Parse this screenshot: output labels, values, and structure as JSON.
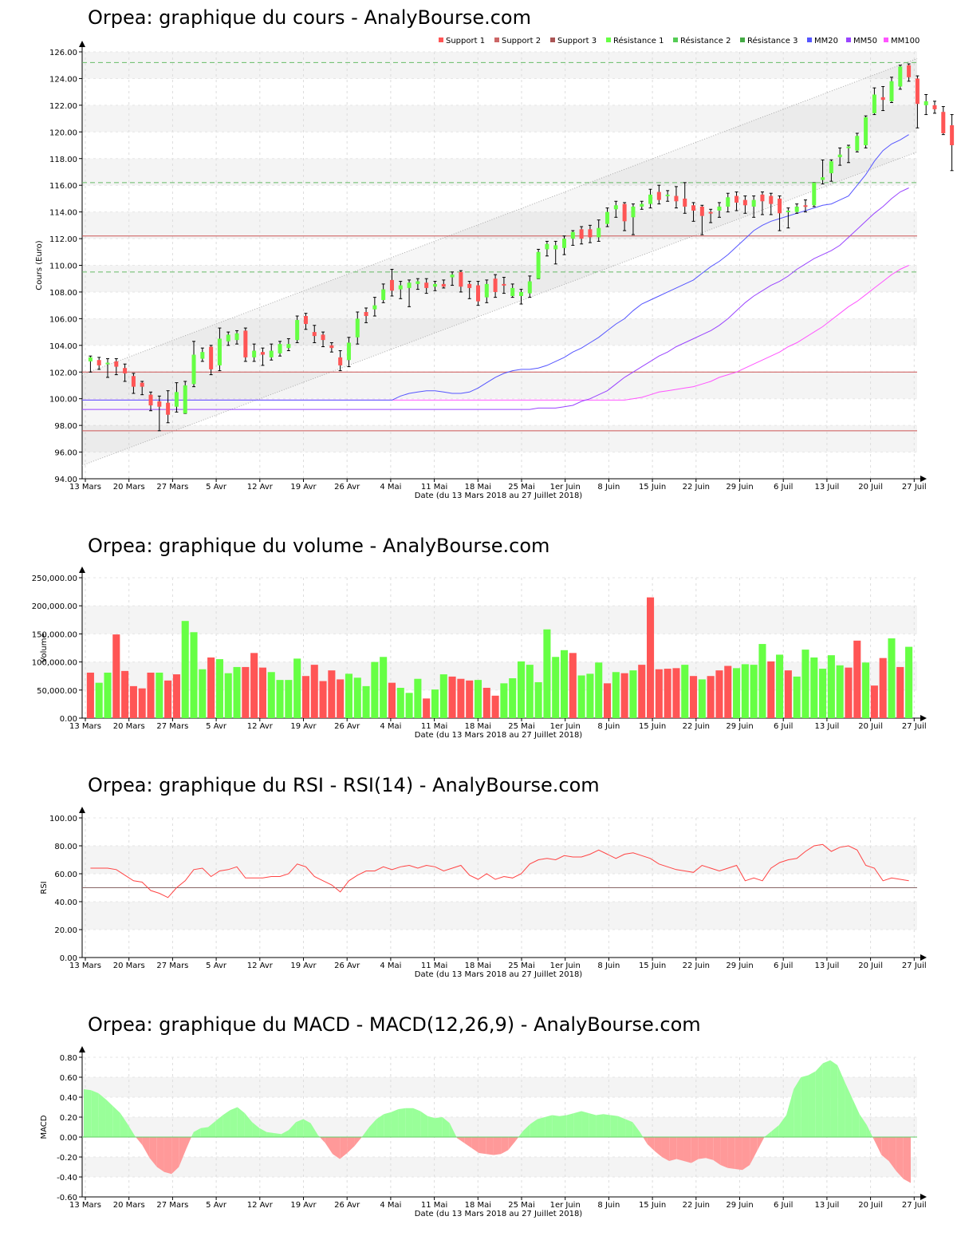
{
  "x_axis": {
    "ticks": [
      "13 Mars",
      "20 Mars",
      "27 Mars",
      "5 Avr",
      "12 Avr",
      "19 Avr",
      "26 Avr",
      "4 Mai",
      "11 Mai",
      "18 Mai",
      "25 Mai",
      "1er Juin",
      "8 Juin",
      "15 Juin",
      "22 Juin",
      "29 Juin",
      "6 Juil",
      "13 Juil",
      "20 Juil",
      "27 Juil"
    ],
    "label": "Date (du 13 Mars 2018 au 27 Juillet 2018)"
  },
  "colors": {
    "up": "#66ff44",
    "down": "#ff5555",
    "support": "#cc5555",
    "resistance": "#66bb66",
    "mm20": "#5555ff",
    "mm50": "#9944ff",
    "mm100": "#ff55ff",
    "rsi": "#ff4444",
    "macd_pos": "#99ff99",
    "macd_neg": "#ff9999"
  },
  "chart_data": [
    {
      "id": "price",
      "type": "candlestick",
      "title": "Orpea: graphique du cours - AnalyBourse.com",
      "ylabel": "Cours (Euro)",
      "ylim": [
        94,
        126
      ],
      "yticks": [
        "94.00",
        "96.00",
        "98.00",
        "100.00",
        "102.00",
        "104.00",
        "106.00",
        "108.00",
        "110.00",
        "112.00",
        "114.00",
        "116.00",
        "118.00",
        "120.00",
        "122.00",
        "124.00",
        "126.00"
      ],
      "legend": [
        "Support 1",
        "Support 2",
        "Support 3",
        "Résistance 1",
        "Résistance 2",
        "Résistance 3",
        "MM20",
        "MM50",
        "MM100"
      ],
      "support_levels": [
        102.0,
        97.6,
        112.2
      ],
      "resistance_levels": [
        109.5,
        116.2,
        125.2
      ],
      "channel": {
        "upper": [
          101.8,
          125.5
        ],
        "lower": [
          95.0,
          118.5
        ]
      },
      "candles": [
        [
          102.8,
          103.1,
          102.0,
          103.2
        ],
        [
          102.9,
          102.5,
          102.2,
          103.1
        ],
        [
          102.6,
          102.7,
          101.6,
          103.0
        ],
        [
          102.8,
          102.4,
          101.8,
          103.0
        ],
        [
          102.3,
          101.9,
          101.3,
          102.6
        ],
        [
          101.7,
          100.9,
          100.4,
          101.9
        ],
        [
          101.2,
          100.9,
          100.3,
          101.3
        ],
        [
          100.3,
          99.5,
          99.1,
          100.5
        ],
        [
          99.8,
          99.4,
          97.6,
          100.2
        ],
        [
          99.7,
          98.8,
          98.2,
          100.6
        ],
        [
          99.4,
          100.5,
          99.0,
          101.2
        ],
        [
          98.9,
          101.0,
          98.9,
          101.3
        ],
        [
          101.1,
          103.3,
          100.9,
          104.3
        ],
        [
          103.0,
          103.5,
          102.8,
          103.8
        ],
        [
          103.9,
          102.2,
          101.8,
          104.0
        ],
        [
          102.5,
          104.5,
          102.1,
          105.3
        ],
        [
          104.3,
          104.8,
          104.0,
          105.0
        ],
        [
          104.4,
          104.9,
          104.1,
          105.1
        ],
        [
          105.1,
          103.1,
          102.8,
          105.3
        ],
        [
          103.1,
          103.6,
          102.8,
          104.1
        ],
        [
          103.5,
          103.3,
          102.5,
          103.8
        ],
        [
          103.1,
          103.6,
          102.9,
          104.1
        ],
        [
          103.4,
          104.1,
          103.2,
          104.3
        ],
        [
          103.8,
          104.1,
          103.6,
          104.5
        ],
        [
          104.4,
          105.9,
          104.2,
          106.2
        ],
        [
          106.2,
          105.6,
          105.2,
          106.4
        ],
        [
          105.0,
          104.7,
          104.2,
          105.5
        ],
        [
          104.8,
          104.4,
          103.9,
          105.0
        ],
        [
          104.0,
          103.8,
          103.5,
          104.2
        ],
        [
          103.1,
          102.5,
          102.1,
          103.6
        ],
        [
          102.9,
          104.2,
          102.4,
          104.6
        ],
        [
          104.6,
          106.0,
          104.1,
          106.5
        ],
        [
          106.5,
          106.2,
          105.7,
          106.8
        ],
        [
          106.7,
          107.0,
          106.2,
          107.6
        ],
        [
          107.4,
          108.2,
          107.2,
          108.6
        ],
        [
          108.9,
          108.1,
          107.7,
          109.7
        ],
        [
          108.2,
          108.5,
          107.5,
          108.8
        ],
        [
          108.3,
          108.7,
          106.9,
          108.9
        ],
        [
          108.6,
          108.8,
          108.2,
          109.0
        ],
        [
          108.7,
          108.3,
          107.9,
          109.0
        ],
        [
          108.4,
          108.6,
          108.1,
          108.8
        ],
        [
          108.6,
          108.4,
          108.3,
          108.9
        ],
        [
          109.1,
          109.3,
          108.5,
          109.5
        ],
        [
          109.5,
          108.4,
          108.0,
          109.6
        ],
        [
          108.6,
          108.3,
          107.5,
          108.8
        ],
        [
          108.5,
          107.3,
          107.0,
          108.8
        ],
        [
          107.6,
          108.6,
          107.2,
          108.9
        ],
        [
          109.0,
          108.0,
          107.6,
          109.3
        ],
        [
          108.6,
          108.5,
          107.9,
          109.1
        ],
        [
          107.7,
          108.3,
          107.6,
          108.6
        ],
        [
          107.7,
          108.0,
          107.1,
          108.2
        ],
        [
          107.9,
          108.8,
          107.6,
          109.2
        ],
        [
          109.0,
          111.0,
          109.0,
          111.2
        ],
        [
          111.2,
          111.6,
          110.7,
          111.8
        ],
        [
          111.2,
          111.5,
          110.1,
          111.8
        ],
        [
          111.3,
          112.0,
          110.8,
          112.2
        ],
        [
          112.0,
          112.5,
          111.5,
          112.6
        ],
        [
          112.7,
          112.0,
          111.6,
          112.9
        ],
        [
          112.7,
          112.1,
          111.7,
          113.0
        ],
        [
          112.1,
          112.8,
          111.8,
          113.4
        ],
        [
          113.1,
          114.0,
          112.9,
          114.3
        ],
        [
          114.2,
          114.5,
          113.6,
          114.8
        ],
        [
          114.6,
          113.3,
          112.6,
          114.7
        ],
        [
          113.6,
          114.4,
          112.3,
          114.6
        ],
        [
          114.4,
          114.6,
          114.2,
          114.8
        ],
        [
          114.6,
          115.3,
          114.3,
          115.7
        ],
        [
          115.5,
          114.9,
          114.6,
          116.0
        ],
        [
          115.2,
          115.3,
          114.8,
          115.6
        ],
        [
          115.2,
          114.8,
          114.3,
          115.9
        ],
        [
          115.0,
          114.4,
          113.9,
          116.2
        ],
        [
          114.5,
          114.1,
          113.3,
          114.7
        ],
        [
          114.4,
          113.7,
          112.3,
          114.5
        ],
        [
          114.0,
          113.9,
          113.2,
          114.2
        ],
        [
          114.1,
          114.4,
          113.6,
          114.7
        ],
        [
          114.4,
          115.1,
          114.0,
          115.4
        ],
        [
          115.2,
          114.7,
          114.1,
          115.5
        ],
        [
          114.9,
          114.5,
          113.9,
          115.2
        ],
        [
          114.4,
          114.9,
          113.6,
          115.2
        ],
        [
          115.3,
          114.8,
          113.8,
          115.5
        ],
        [
          115.2,
          114.6,
          113.8,
          115.4
        ],
        [
          115.0,
          113.9,
          112.6,
          115.2
        ],
        [
          114.0,
          114.1,
          112.8,
          114.3
        ],
        [
          114.0,
          114.4,
          113.9,
          114.6
        ],
        [
          114.5,
          114.4,
          114.0,
          114.9
        ],
        [
          114.5,
          116.2,
          114.4,
          116.2
        ],
        [
          116.4,
          116.6,
          116.1,
          117.9
        ],
        [
          116.9,
          117.8,
          116.3,
          117.9
        ],
        [
          118.1,
          118.3,
          117.5,
          118.8
        ],
        [
          118.8,
          118.9,
          117.7,
          119.0
        ],
        [
          118.6,
          119.7,
          118.5,
          119.9
        ],
        [
          119.0,
          121.1,
          118.8,
          121.2
        ],
        [
          121.4,
          122.8,
          121.3,
          123.3
        ],
        [
          122.6,
          122.4,
          121.6,
          123.4
        ],
        [
          122.3,
          123.8,
          122.2,
          124.1
        ],
        [
          123.4,
          124.9,
          123.2,
          125.0
        ],
        [
          125.0,
          124.1,
          123.8,
          125.1
        ],
        [
          124.0,
          122.1,
          120.3,
          124.2
        ],
        [
          122.0,
          122.3,
          121.3,
          122.8
        ],
        [
          122.0,
          121.7,
          121.4,
          122.3
        ],
        [
          121.5,
          119.9,
          119.8,
          121.9
        ],
        [
          120.5,
          119.0,
          117.1,
          121.3
        ],
        [
          120.7,
          120.3,
          118.9,
          121.1
        ],
        [
          120.0,
          118.1,
          116.9,
          120.4
        ]
      ],
      "mm20": [
        99.9,
        100.2,
        100.4,
        100.5,
        100.6,
        100.6,
        100.5,
        100.4,
        100.4,
        100.5,
        100.8,
        101.2,
        101.6,
        101.9,
        102.1,
        102.2,
        102.2,
        102.3,
        102.5,
        102.8,
        103.1,
        103.5,
        103.8,
        104.2,
        104.6,
        105.1,
        105.6,
        106.0,
        106.6,
        107.1,
        107.4,
        107.7,
        108.0,
        108.3,
        108.6,
        108.9,
        109.4,
        109.9,
        110.3,
        110.8,
        111.4,
        112.0,
        112.6,
        113.0,
        113.3,
        113.5,
        113.7,
        113.9,
        114.1,
        114.3,
        114.5,
        114.6,
        114.9,
        115.2,
        116.0,
        116.8,
        117.8,
        118.6,
        119.1,
        119.4,
        119.8
      ],
      "mm50": [
        99.2,
        99.3,
        99.3,
        99.3,
        99.4,
        99.5,
        99.8,
        100.0,
        100.3,
        100.6,
        101.1,
        101.6,
        102.0,
        102.4,
        102.8,
        103.2,
        103.5,
        103.9,
        104.2,
        104.5,
        104.8,
        105.1,
        105.5,
        106.0,
        106.6,
        107.2,
        107.7,
        108.1,
        108.5,
        108.8,
        109.2,
        109.7,
        110.1,
        110.5,
        110.8,
        111.1,
        111.5,
        112.1,
        112.7,
        113.3,
        113.9,
        114.4,
        115.0,
        115.5,
        115.8
      ],
      "mm100": [
        99.9,
        99.9,
        99.9,
        100.0,
        100.1,
        100.3,
        100.5,
        100.6,
        100.7,
        100.8,
        100.9,
        101.1,
        101.3,
        101.6,
        101.8,
        102.0,
        102.3,
        102.6,
        102.9,
        103.2,
        103.5,
        103.9,
        104.2,
        104.6,
        105.0,
        105.4,
        105.9,
        106.4,
        106.9,
        107.3,
        107.8,
        108.3,
        108.8,
        109.3,
        109.7,
        110.0
      ]
    },
    {
      "id": "volume",
      "type": "bar",
      "title": "Orpea: graphique du volume - AnalyBourse.com",
      "ylabel": "Volume",
      "ylim": [
        0,
        250000
      ],
      "yticks": [
        "0.00",
        "50,000.00",
        "100,000.00",
        "150,000.00",
        "200,000.00",
        "250,000.00"
      ],
      "values": [
        81000,
        63000,
        81000,
        149000,
        84000,
        57000,
        53000,
        81000,
        81000,
        67000,
        78000,
        173000,
        153000,
        87000,
        108000,
        105000,
        80000,
        91000,
        91000,
        116000,
        90000,
        82000,
        68000,
        68000,
        106000,
        75000,
        95000,
        66000,
        85000,
        69000,
        79000,
        72000,
        57000,
        100000,
        109000,
        63000,
        54000,
        45000,
        70000,
        35000,
        51000,
        78000,
        74000,
        70000,
        67000,
        68000,
        54000,
        40000,
        62000,
        71000,
        101000,
        95000,
        64000,
        158000,
        109000,
        121000,
        116000,
        76000,
        79000,
        99000,
        62000,
        82000,
        80000,
        85000,
        95000,
        215000,
        87000,
        88000,
        89000,
        95000,
        75000,
        69000,
        75000,
        85000,
        93000,
        89000,
        96000,
        95000,
        132000,
        101000,
        113000,
        85000,
        74000,
        122000,
        108000,
        88000,
        112000,
        94000,
        90000,
        138000,
        99000,
        58000,
        107000,
        142000,
        91000,
        127000
      ],
      "up_down": [
        "d",
        "u",
        "u",
        "d",
        "d",
        "d",
        "d",
        "d",
        "u",
        "d",
        "d",
        "u",
        "u",
        "u",
        "d",
        "u",
        "u",
        "u",
        "d",
        "d",
        "d",
        "u",
        "u",
        "u",
        "u",
        "d",
        "d",
        "d",
        "d",
        "d",
        "u",
        "u",
        "u",
        "u",
        "u",
        "d",
        "u",
        "u",
        "u",
        "d",
        "u",
        "u",
        "d",
        "d",
        "d",
        "u",
        "d",
        "d",
        "u",
        "u",
        "u",
        "u",
        "u",
        "u",
        "u",
        "u",
        "d",
        "u",
        "u",
        "u",
        "d",
        "u",
        "d",
        "u",
        "d",
        "d",
        "d",
        "d",
        "d",
        "u",
        "d",
        "u",
        "d",
        "d",
        "d",
        "u",
        "u",
        "u",
        "u",
        "d",
        "u",
        "d",
        "u",
        "u",
        "u",
        "u",
        "u",
        "u",
        "d",
        "d",
        "u",
        "d",
        "d",
        "u",
        "d",
        "u"
      ]
    },
    {
      "id": "rsi",
      "type": "line",
      "title": "Orpea: graphique du RSI - RSI(14) - AnalyBourse.com",
      "ylabel": "RSI",
      "ylim": [
        0,
        100
      ],
      "yticks": [
        "0.00",
        "20.00",
        "40.00",
        "60.00",
        "80.00",
        "100.00"
      ],
      "reference": 50,
      "values": [
        64,
        64,
        64,
        63,
        59,
        55,
        54,
        48,
        46,
        43,
        50,
        55,
        63,
        64,
        58,
        62,
        63,
        65,
        57,
        57,
        57,
        58,
        58,
        60,
        67,
        65,
        58,
        55,
        52,
        47,
        55,
        59,
        62,
        62,
        65,
        63,
        65,
        66,
        64,
        66,
        65,
        62,
        64,
        66,
        59,
        56,
        60,
        56,
        58,
        57,
        60,
        67,
        70,
        71,
        70,
        73,
        72,
        72,
        74,
        77,
        74,
        71,
        74,
        75,
        73,
        71,
        67,
        65,
        63,
        62,
        61,
        66,
        64,
        62,
        64,
        66,
        55,
        57,
        55,
        64,
        68,
        70,
        71,
        76,
        80,
        81,
        76,
        79,
        80,
        77,
        66,
        64,
        55,
        57,
        56,
        55
      ]
    },
    {
      "id": "macd",
      "type": "area",
      "title": "Orpea: graphique du MACD - MACD(12,26,9) - AnalyBourse.com",
      "ylabel": "MACD",
      "ylim": [
        -0.6,
        0.8
      ],
      "yticks": [
        "-0.60",
        "-0.40",
        "-0.20",
        "0.00",
        "0.20",
        "0.40",
        "0.60",
        "0.80"
      ],
      "values": [
        0.48,
        0.47,
        0.44,
        0.38,
        0.31,
        0.24,
        0.13,
        0.01,
        -0.08,
        -0.21,
        -0.3,
        -0.35,
        -0.37,
        -0.3,
        -0.12,
        0.05,
        0.09,
        0.1,
        0.16,
        0.22,
        0.27,
        0.3,
        0.24,
        0.15,
        0.09,
        0.05,
        0.04,
        0.03,
        0.07,
        0.15,
        0.18,
        0.14,
        0.02,
        -0.06,
        -0.17,
        -0.22,
        -0.16,
        -0.09,
        0.0,
        0.1,
        0.18,
        0.23,
        0.25,
        0.28,
        0.29,
        0.29,
        0.26,
        0.21,
        0.19,
        0.2,
        0.14,
        -0.01,
        -0.06,
        -0.11,
        -0.16,
        -0.17,
        -0.18,
        -0.17,
        -0.13,
        -0.04,
        0.06,
        0.13,
        0.18,
        0.2,
        0.22,
        0.21,
        0.22,
        0.24,
        0.26,
        0.24,
        0.22,
        0.23,
        0.22,
        0.21,
        0.18,
        0.15,
        0.05,
        -0.07,
        -0.14,
        -0.2,
        -0.24,
        -0.22,
        -0.24,
        -0.26,
        -0.22,
        -0.21,
        -0.23,
        -0.28,
        -0.31,
        -0.32,
        -0.33,
        -0.28,
        -0.14,
        0.0,
        0.06,
        0.12,
        0.22,
        0.48,
        0.6,
        0.62,
        0.66,
        0.74,
        0.77,
        0.72,
        0.55,
        0.39,
        0.23,
        0.12,
        -0.03,
        -0.18,
        -0.24,
        -0.34,
        -0.42,
        -0.46
      ]
    }
  ]
}
